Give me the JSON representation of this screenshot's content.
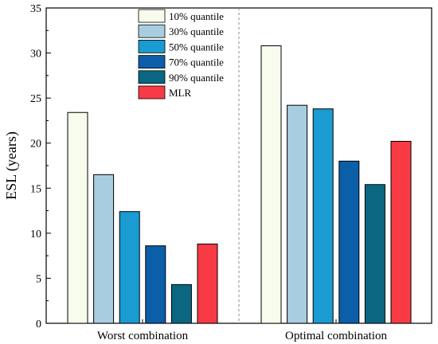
{
  "chart_data": {
    "type": "bar",
    "title": "",
    "xlabel": "",
    "ylabel": "ESL (years)",
    "ylim": [
      0,
      35
    ],
    "yticks": [
      0,
      5,
      10,
      15,
      20,
      25,
      30,
      35
    ],
    "categories": [
      "Worst combination",
      "Optimal combination"
    ],
    "series": [
      {
        "name": "10% quantile",
        "values": [
          23.4,
          30.8
        ],
        "color": "#f7fcec"
      },
      {
        "name": "30% quantile",
        "values": [
          16.5,
          24.2
        ],
        "color": "#a8cde0"
      },
      {
        "name": "50% quantile",
        "values": [
          12.4,
          23.8
        ],
        "color": "#1a9bd1"
      },
      {
        "name": "70% quantile",
        "values": [
          8.6,
          18.0
        ],
        "color": "#0b5ea8"
      },
      {
        "name": "90% quantile",
        "values": [
          4.3,
          15.4
        ],
        "color": "#0b6781"
      },
      {
        "name": "MLR",
        "values": [
          8.8,
          20.2
        ],
        "color": "#f83a45"
      }
    ],
    "grid": false,
    "legend": "top-center",
    "separator": "dashed vertical line between groups"
  }
}
